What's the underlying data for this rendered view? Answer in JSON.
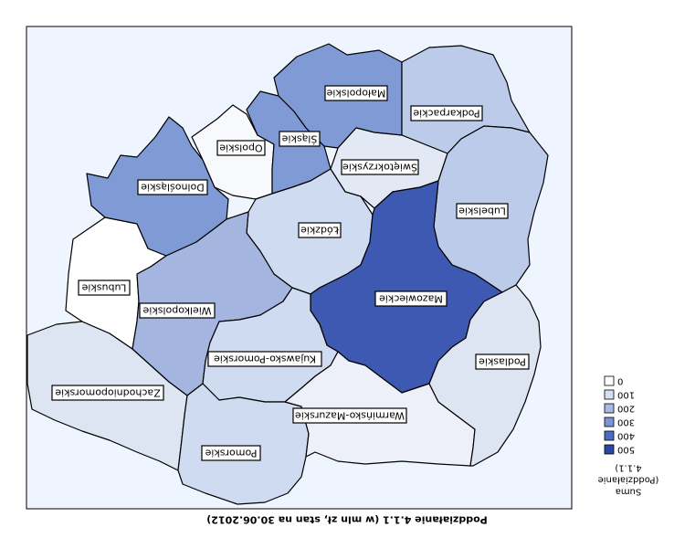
{
  "map": {
    "caption": "Poddziałanie 4.1.1 (w mln zł, stan na 30.06.2012)",
    "background_color": "#eef5fe",
    "regions": [
      {
        "name": "Mazowieckie",
        "fill": "#3d59b1"
      },
      {
        "name": "Małopolskie",
        "fill": "#7f9ad5"
      },
      {
        "name": "Śląskie",
        "fill": "#7f9ad5"
      },
      {
        "name": "Dolnośląskie",
        "fill": "#7f9ad5"
      },
      {
        "name": "Wielkopolskie",
        "fill": "#a4b6df"
      },
      {
        "name": "Podkarpackie",
        "fill": "#bccbe9"
      },
      {
        "name": "Lubelskie",
        "fill": "#bccbe9"
      },
      {
        "name": "Łódzkie",
        "fill": "#cfdbf0"
      },
      {
        "name": "Świętokrzyskie",
        "fill": "#e2e8f4"
      },
      {
        "name": "Kujawsko-Pomorskie",
        "fill": "#cfdbf0"
      },
      {
        "name": "Pomorskie",
        "fill": "#cfdbf0"
      },
      {
        "name": "Podlaskie",
        "fill": "#dde5f3"
      },
      {
        "name": "Zachodniopomorskie",
        "fill": "#dde5f3"
      },
      {
        "name": "Warmińsko-Mazurskie",
        "fill": "#edf0f8"
      },
      {
        "name": "Opolskie",
        "fill": "#f7f9fd"
      },
      {
        "name": "Lubuskie",
        "fill": "#ffffff"
      }
    ]
  },
  "legend": {
    "title_lines": [
      "Suma",
      "(Poddziałanie",
      "4.1.1)"
    ],
    "items": [
      {
        "label": "0",
        "color": "#ffffff"
      },
      {
        "label": "100",
        "color": "#d6dff1"
      },
      {
        "label": "200",
        "color": "#a9bae3"
      },
      {
        "label": "300",
        "color": "#7b95d3"
      },
      {
        "label": "400",
        "color": "#4d6cc2"
      },
      {
        "label": "500",
        "color": "#2a47a6"
      }
    ]
  }
}
